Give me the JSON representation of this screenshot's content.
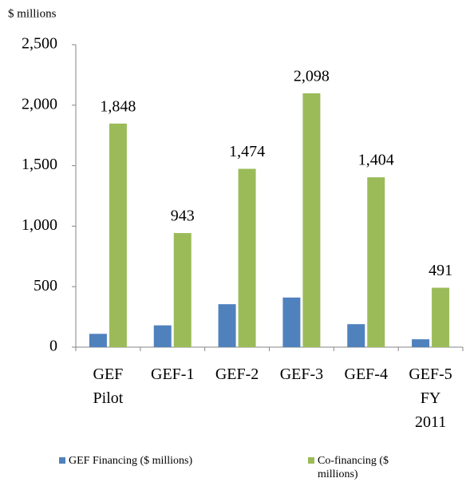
{
  "chart_data": {
    "type": "bar",
    "y_axis_label": "$ millions",
    "categories": [
      "GEF Pilot",
      "GEF-1",
      "GEF-2",
      "GEF-3",
      "GEF-4",
      "GEF-5 FY 2011"
    ],
    "series": [
      {
        "name": "GEF Financing ($ millions)",
        "color": "#4f81bd",
        "values": [
          110,
          180,
          355,
          410,
          190,
          65
        ]
      },
      {
        "name": "Co-financing ($ millions)",
        "color": "#9bbb59",
        "values": [
          1848,
          943,
          1474,
          2098,
          1404,
          491
        ],
        "value_labels": [
          "1,848",
          "943",
          "1,474",
          "2,098",
          "1,404",
          "491"
        ]
      }
    ],
    "ylim": [
      0,
      2500
    ],
    "yticks": [
      0,
      500,
      {
        "value": 1000,
        "label": "1,000"
      },
      {
        "value": 1500,
        "label": "1,500"
      },
      {
        "value": 2000,
        "label": "2,000"
      },
      {
        "value": 2500,
        "label": "2,500"
      }
    ],
    "legend": "bottom"
  }
}
